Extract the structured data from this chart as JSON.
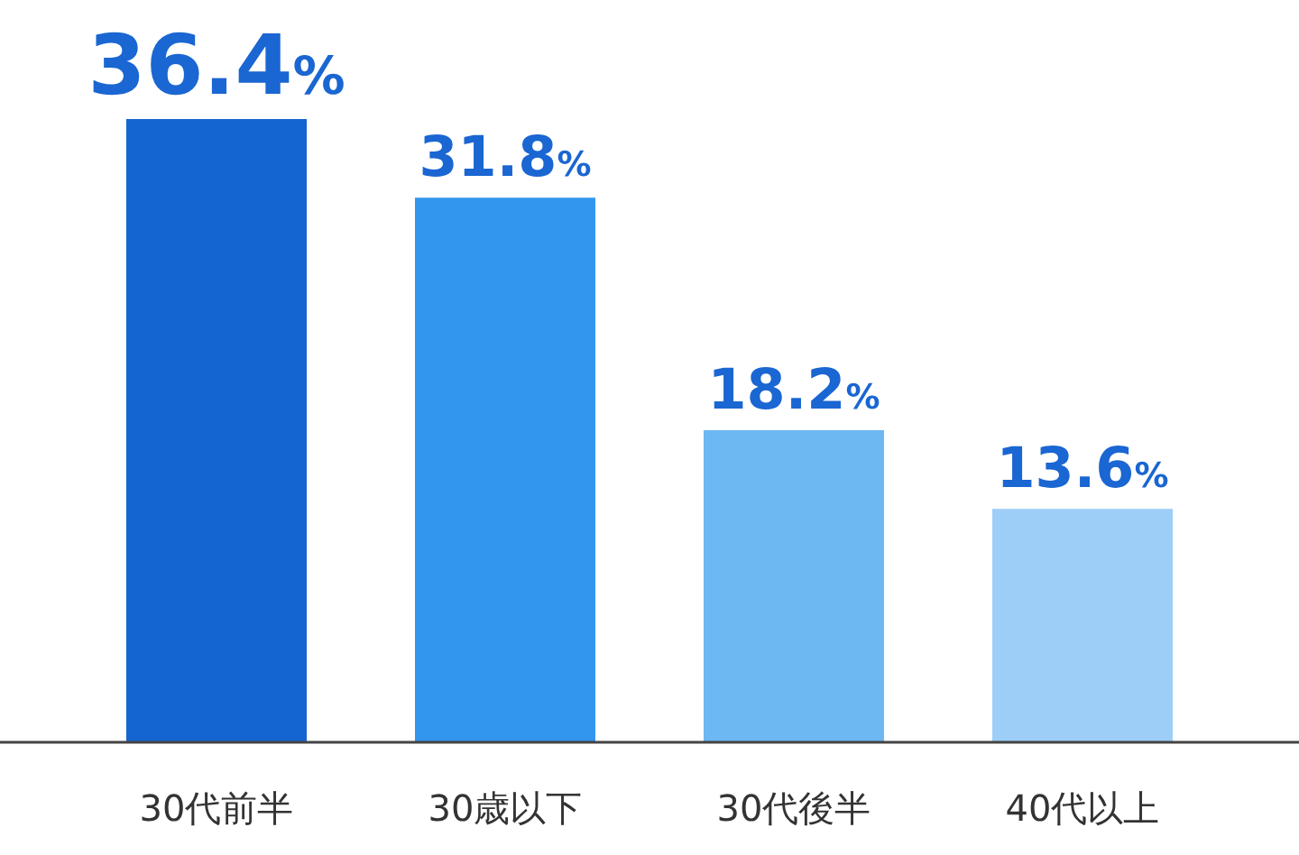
{
  "chart_data": {
    "type": "bar",
    "categories": [
      "30代前半",
      "30歳以下",
      "30代後半",
      "40代以上"
    ],
    "values": [
      36.4,
      31.8,
      18.2,
      13.6
    ],
    "colors": [
      "#1565d0",
      "#3396ee",
      "#6db7f3",
      "#9dcef8"
    ],
    "value_labels": [
      "36.4%",
      "31.8%",
      "18.2%",
      "13.6%"
    ]
  }
}
